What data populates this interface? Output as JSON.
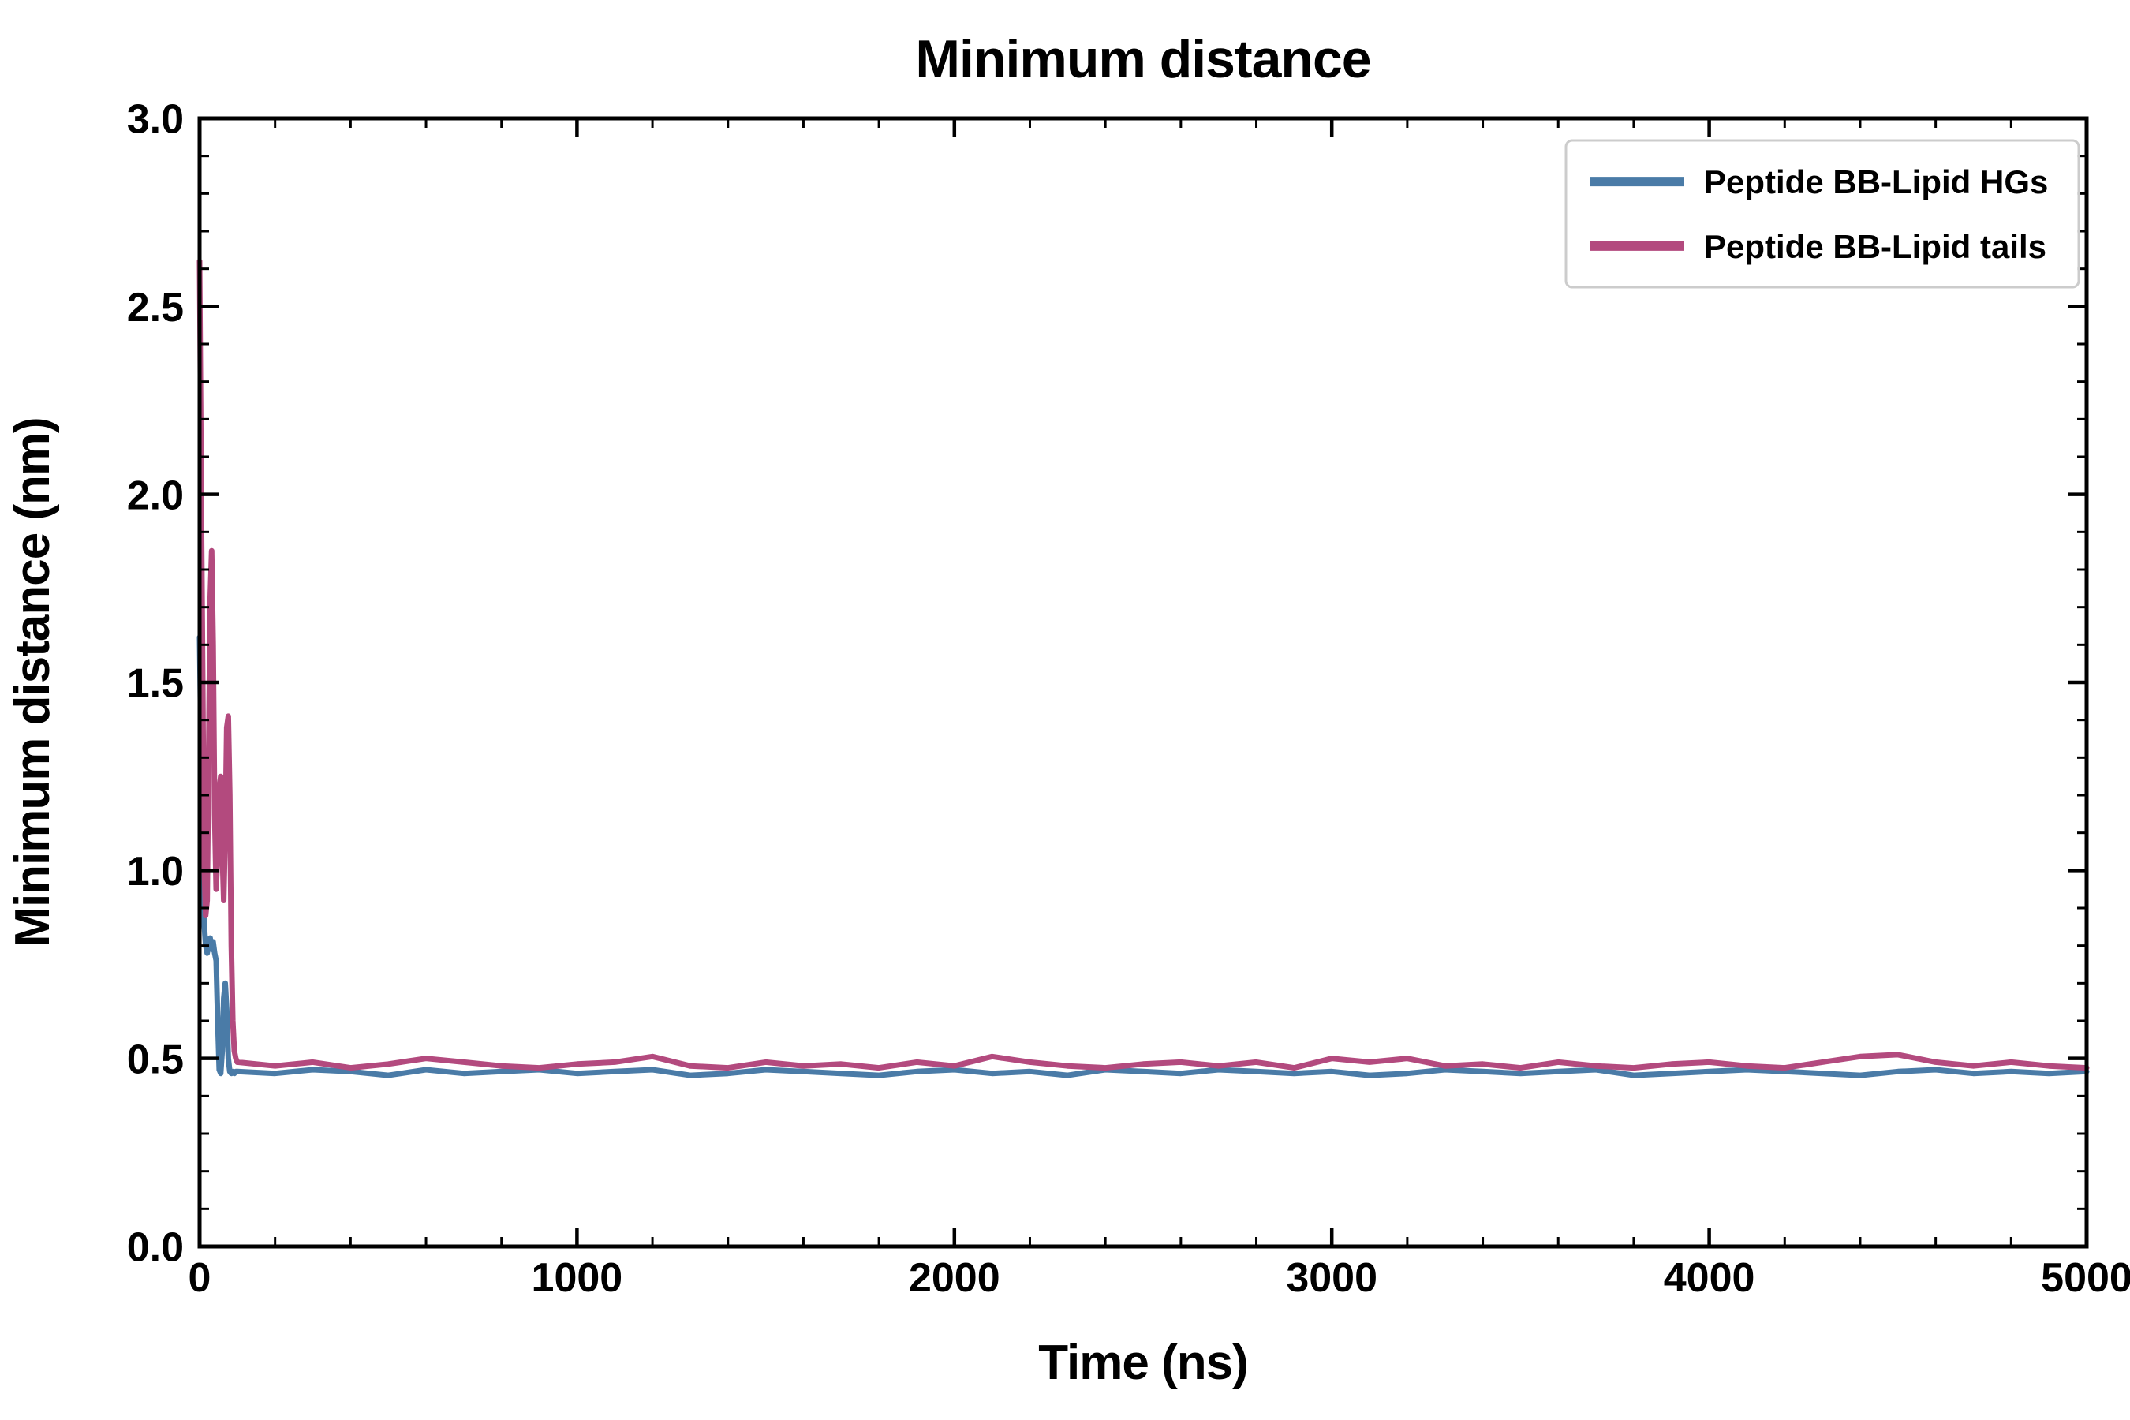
{
  "chart_data": {
    "type": "line",
    "title": "Minimum distance",
    "xlabel": "Time (ns)",
    "ylabel": "Minimum distance (nm)",
    "xlim": [
      0,
      5000
    ],
    "ylim": [
      0.0,
      3.0
    ],
    "xticks": [
      0,
      1000,
      2000,
      3000,
      4000,
      5000
    ],
    "xtick_labels": [
      "0",
      "1000",
      "2000",
      "3000",
      "4000",
      "5000"
    ],
    "yticks": [
      0.0,
      0.5,
      1.0,
      1.5,
      2.0,
      2.5,
      3.0
    ],
    "ytick_labels": [
      "0.0",
      "0.5",
      "1.0",
      "1.5",
      "2.0",
      "2.5",
      "3.0"
    ],
    "x_minor_step": 200,
    "y_minor_step": 0.1,
    "grid": false,
    "legend_position": "upper right",
    "axis_color": "#000000",
    "background_color": "#ffffff",
    "series": [
      {
        "name": "Peptide BB-Lipid HGs",
        "color": "#4a7ba7",
        "points": [
          [
            0,
            1.62
          ],
          [
            4,
            1.3
          ],
          [
            8,
            0.98
          ],
          [
            12,
            0.86
          ],
          [
            16,
            0.8
          ],
          [
            20,
            0.78
          ],
          [
            24,
            0.8
          ],
          [
            28,
            0.82
          ],
          [
            32,
            0.79
          ],
          [
            36,
            0.81
          ],
          [
            40,
            0.78
          ],
          [
            44,
            0.76
          ],
          [
            48,
            0.6
          ],
          [
            52,
            0.47
          ],
          [
            56,
            0.46
          ],
          [
            60,
            0.52
          ],
          [
            64,
            0.66
          ],
          [
            68,
            0.7
          ],
          [
            72,
            0.63
          ],
          [
            76,
            0.5
          ],
          [
            80,
            0.465
          ],
          [
            84,
            0.46
          ],
          [
            88,
            0.465
          ],
          [
            92,
            0.46
          ],
          [
            96,
            0.465
          ],
          [
            100,
            0.465
          ],
          [
            200,
            0.46
          ],
          [
            300,
            0.47
          ],
          [
            400,
            0.465
          ],
          [
            500,
            0.455
          ],
          [
            600,
            0.47
          ],
          [
            700,
            0.46
          ],
          [
            800,
            0.465
          ],
          [
            900,
            0.47
          ],
          [
            1000,
            0.46
          ],
          [
            1100,
            0.465
          ],
          [
            1200,
            0.47
          ],
          [
            1300,
            0.455
          ],
          [
            1400,
            0.46
          ],
          [
            1500,
            0.47
          ],
          [
            1600,
            0.465
          ],
          [
            1700,
            0.46
          ],
          [
            1800,
            0.455
          ],
          [
            1900,
            0.465
          ],
          [
            2000,
            0.47
          ],
          [
            2100,
            0.46
          ],
          [
            2200,
            0.465
          ],
          [
            2300,
            0.455
          ],
          [
            2400,
            0.47
          ],
          [
            2500,
            0.465
          ],
          [
            2600,
            0.46
          ],
          [
            2700,
            0.47
          ],
          [
            2800,
            0.465
          ],
          [
            2900,
            0.46
          ],
          [
            3000,
            0.465
          ],
          [
            3100,
            0.455
          ],
          [
            3200,
            0.46
          ],
          [
            3300,
            0.47
          ],
          [
            3400,
            0.465
          ],
          [
            3500,
            0.46
          ],
          [
            3600,
            0.465
          ],
          [
            3700,
            0.47
          ],
          [
            3800,
            0.455
          ],
          [
            3900,
            0.46
          ],
          [
            4000,
            0.465
          ],
          [
            4100,
            0.47
          ],
          [
            4200,
            0.465
          ],
          [
            4300,
            0.46
          ],
          [
            4400,
            0.455
          ],
          [
            4500,
            0.465
          ],
          [
            4600,
            0.47
          ],
          [
            4700,
            0.46
          ],
          [
            4800,
            0.465
          ],
          [
            4900,
            0.46
          ],
          [
            5000,
            0.465
          ]
        ]
      },
      {
        "name": "Peptide BB-Lipid tails",
        "color": "#b34a7e",
        "points": [
          [
            0,
            2.62
          ],
          [
            4,
            2.05
          ],
          [
            8,
            1.55
          ],
          [
            12,
            1.02
          ],
          [
            16,
            0.88
          ],
          [
            20,
            0.92
          ],
          [
            24,
            1.3
          ],
          [
            28,
            1.72
          ],
          [
            32,
            1.85
          ],
          [
            36,
            1.6
          ],
          [
            40,
            1.15
          ],
          [
            44,
            0.95
          ],
          [
            48,
            1.05
          ],
          [
            52,
            1.22
          ],
          [
            56,
            1.25
          ],
          [
            60,
            1.05
          ],
          [
            64,
            0.92
          ],
          [
            68,
            1.1
          ],
          [
            72,
            1.38
          ],
          [
            76,
            1.41
          ],
          [
            80,
            1.2
          ],
          [
            84,
            0.8
          ],
          [
            88,
            0.6
          ],
          [
            92,
            0.52
          ],
          [
            96,
            0.5
          ],
          [
            100,
            0.49
          ],
          [
            200,
            0.48
          ],
          [
            300,
            0.49
          ],
          [
            400,
            0.475
          ],
          [
            500,
            0.485
          ],
          [
            600,
            0.5
          ],
          [
            700,
            0.49
          ],
          [
            800,
            0.48
          ],
          [
            900,
            0.475
          ],
          [
            1000,
            0.485
          ],
          [
            1100,
            0.49
          ],
          [
            1200,
            0.505
          ],
          [
            1300,
            0.48
          ],
          [
            1400,
            0.475
          ],
          [
            1500,
            0.49
          ],
          [
            1600,
            0.48
          ],
          [
            1700,
            0.485
          ],
          [
            1800,
            0.475
          ],
          [
            1900,
            0.49
          ],
          [
            2000,
            0.48
          ],
          [
            2100,
            0.505
          ],
          [
            2200,
            0.49
          ],
          [
            2300,
            0.48
          ],
          [
            2400,
            0.475
          ],
          [
            2500,
            0.485
          ],
          [
            2600,
            0.49
          ],
          [
            2700,
            0.48
          ],
          [
            2800,
            0.49
          ],
          [
            2900,
            0.475
          ],
          [
            3000,
            0.5
          ],
          [
            3100,
            0.49
          ],
          [
            3200,
            0.5
          ],
          [
            3300,
            0.48
          ],
          [
            3400,
            0.485
          ],
          [
            3500,
            0.475
          ],
          [
            3600,
            0.49
          ],
          [
            3700,
            0.48
          ],
          [
            3800,
            0.475
          ],
          [
            3900,
            0.485
          ],
          [
            4000,
            0.49
          ],
          [
            4100,
            0.48
          ],
          [
            4200,
            0.475
          ],
          [
            4300,
            0.49
          ],
          [
            4400,
            0.505
          ],
          [
            4500,
            0.51
          ],
          [
            4600,
            0.49
          ],
          [
            4700,
            0.48
          ],
          [
            4800,
            0.49
          ],
          [
            4900,
            0.48
          ],
          [
            5000,
            0.475
          ]
        ]
      }
    ]
  }
}
